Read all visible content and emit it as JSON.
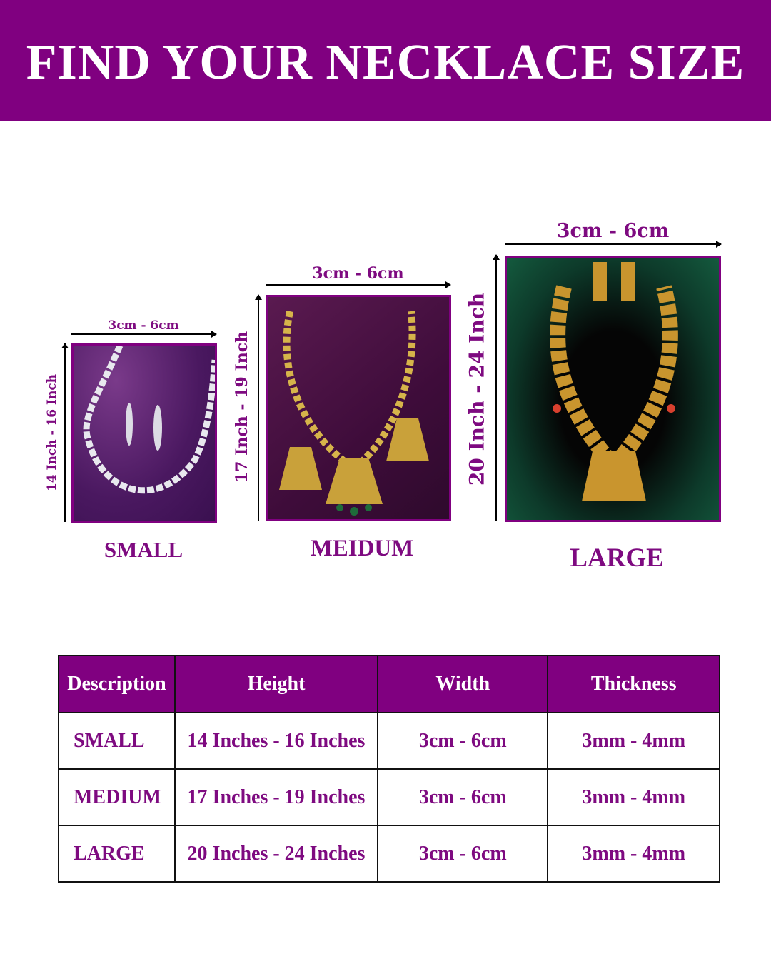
{
  "header": {
    "title": "FIND YOUR NECKLACE SIZE"
  },
  "colors": {
    "brand": "#800080",
    "text": "#7e0a80"
  },
  "sizes": [
    {
      "label": "SMALL",
      "width": "3cm - 6cm",
      "height": "14 Inch - 16 Inch",
      "image": "silver-diamond-necklace-set"
    },
    {
      "label": "MEIDUM",
      "width": "3cm - 6cm",
      "height": "17 Inch - 19 Inch",
      "image": "gold-temple-necklace-set"
    },
    {
      "label": "LARGE",
      "width": "3cm - 6cm",
      "height": "20 Inch - 24 Inch",
      "image": "gold-long-haram-set"
    }
  ],
  "table": {
    "headers": [
      "Description",
      "Height",
      "Width",
      "Thickness"
    ],
    "rows": [
      [
        "SMALL",
        "14 Inches - 16 Inches",
        "3cm - 6cm",
        "3mm - 4mm"
      ],
      [
        "MEDIUM",
        "17 Inches - 19 Inches",
        "3cm - 6cm",
        "3mm - 4mm"
      ],
      [
        "LARGE",
        "20 Inches - 24 Inches",
        "3cm - 6cm",
        "3mm - 4mm"
      ]
    ]
  }
}
